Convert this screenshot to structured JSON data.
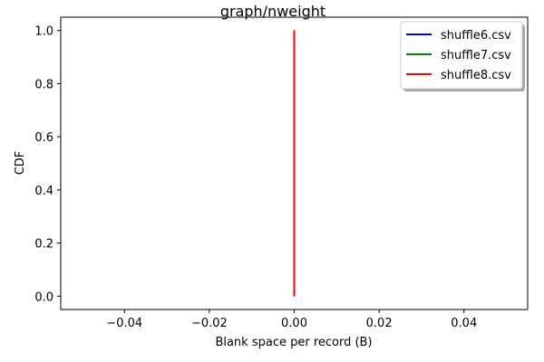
{
  "chart_data": {
    "type": "line",
    "title": "graph/nweight",
    "xlabel": "Blank space per record (B)",
    "ylabel": "CDF",
    "xlim": [
      -0.055,
      0.055
    ],
    "ylim": [
      -0.05,
      1.05
    ],
    "xticks": [
      -0.04,
      -0.02,
      0.0,
      0.02,
      0.04
    ],
    "xtick_labels": [
      "−0.04",
      "−0.02",
      "0.00",
      "0.02",
      "0.04"
    ],
    "yticks": [
      0.0,
      0.2,
      0.4,
      0.6,
      0.8,
      1.0
    ],
    "ytick_labels": [
      "0.0",
      "0.2",
      "0.4",
      "0.6",
      "0.8",
      "1.0"
    ],
    "grid": false,
    "legend_position": "top-right",
    "series": [
      {
        "name": "shuffle6.csv",
        "color": "#0000ff",
        "x": [
          0,
          0
        ],
        "y": [
          0,
          1
        ]
      },
      {
        "name": "shuffle7.csv",
        "color": "#008000",
        "x": [
          0,
          0
        ],
        "y": [
          0,
          1
        ]
      },
      {
        "name": "shuffle8.csv",
        "color": "#ff0000",
        "x": [
          0,
          0
        ],
        "y": [
          0,
          1
        ]
      }
    ]
  }
}
